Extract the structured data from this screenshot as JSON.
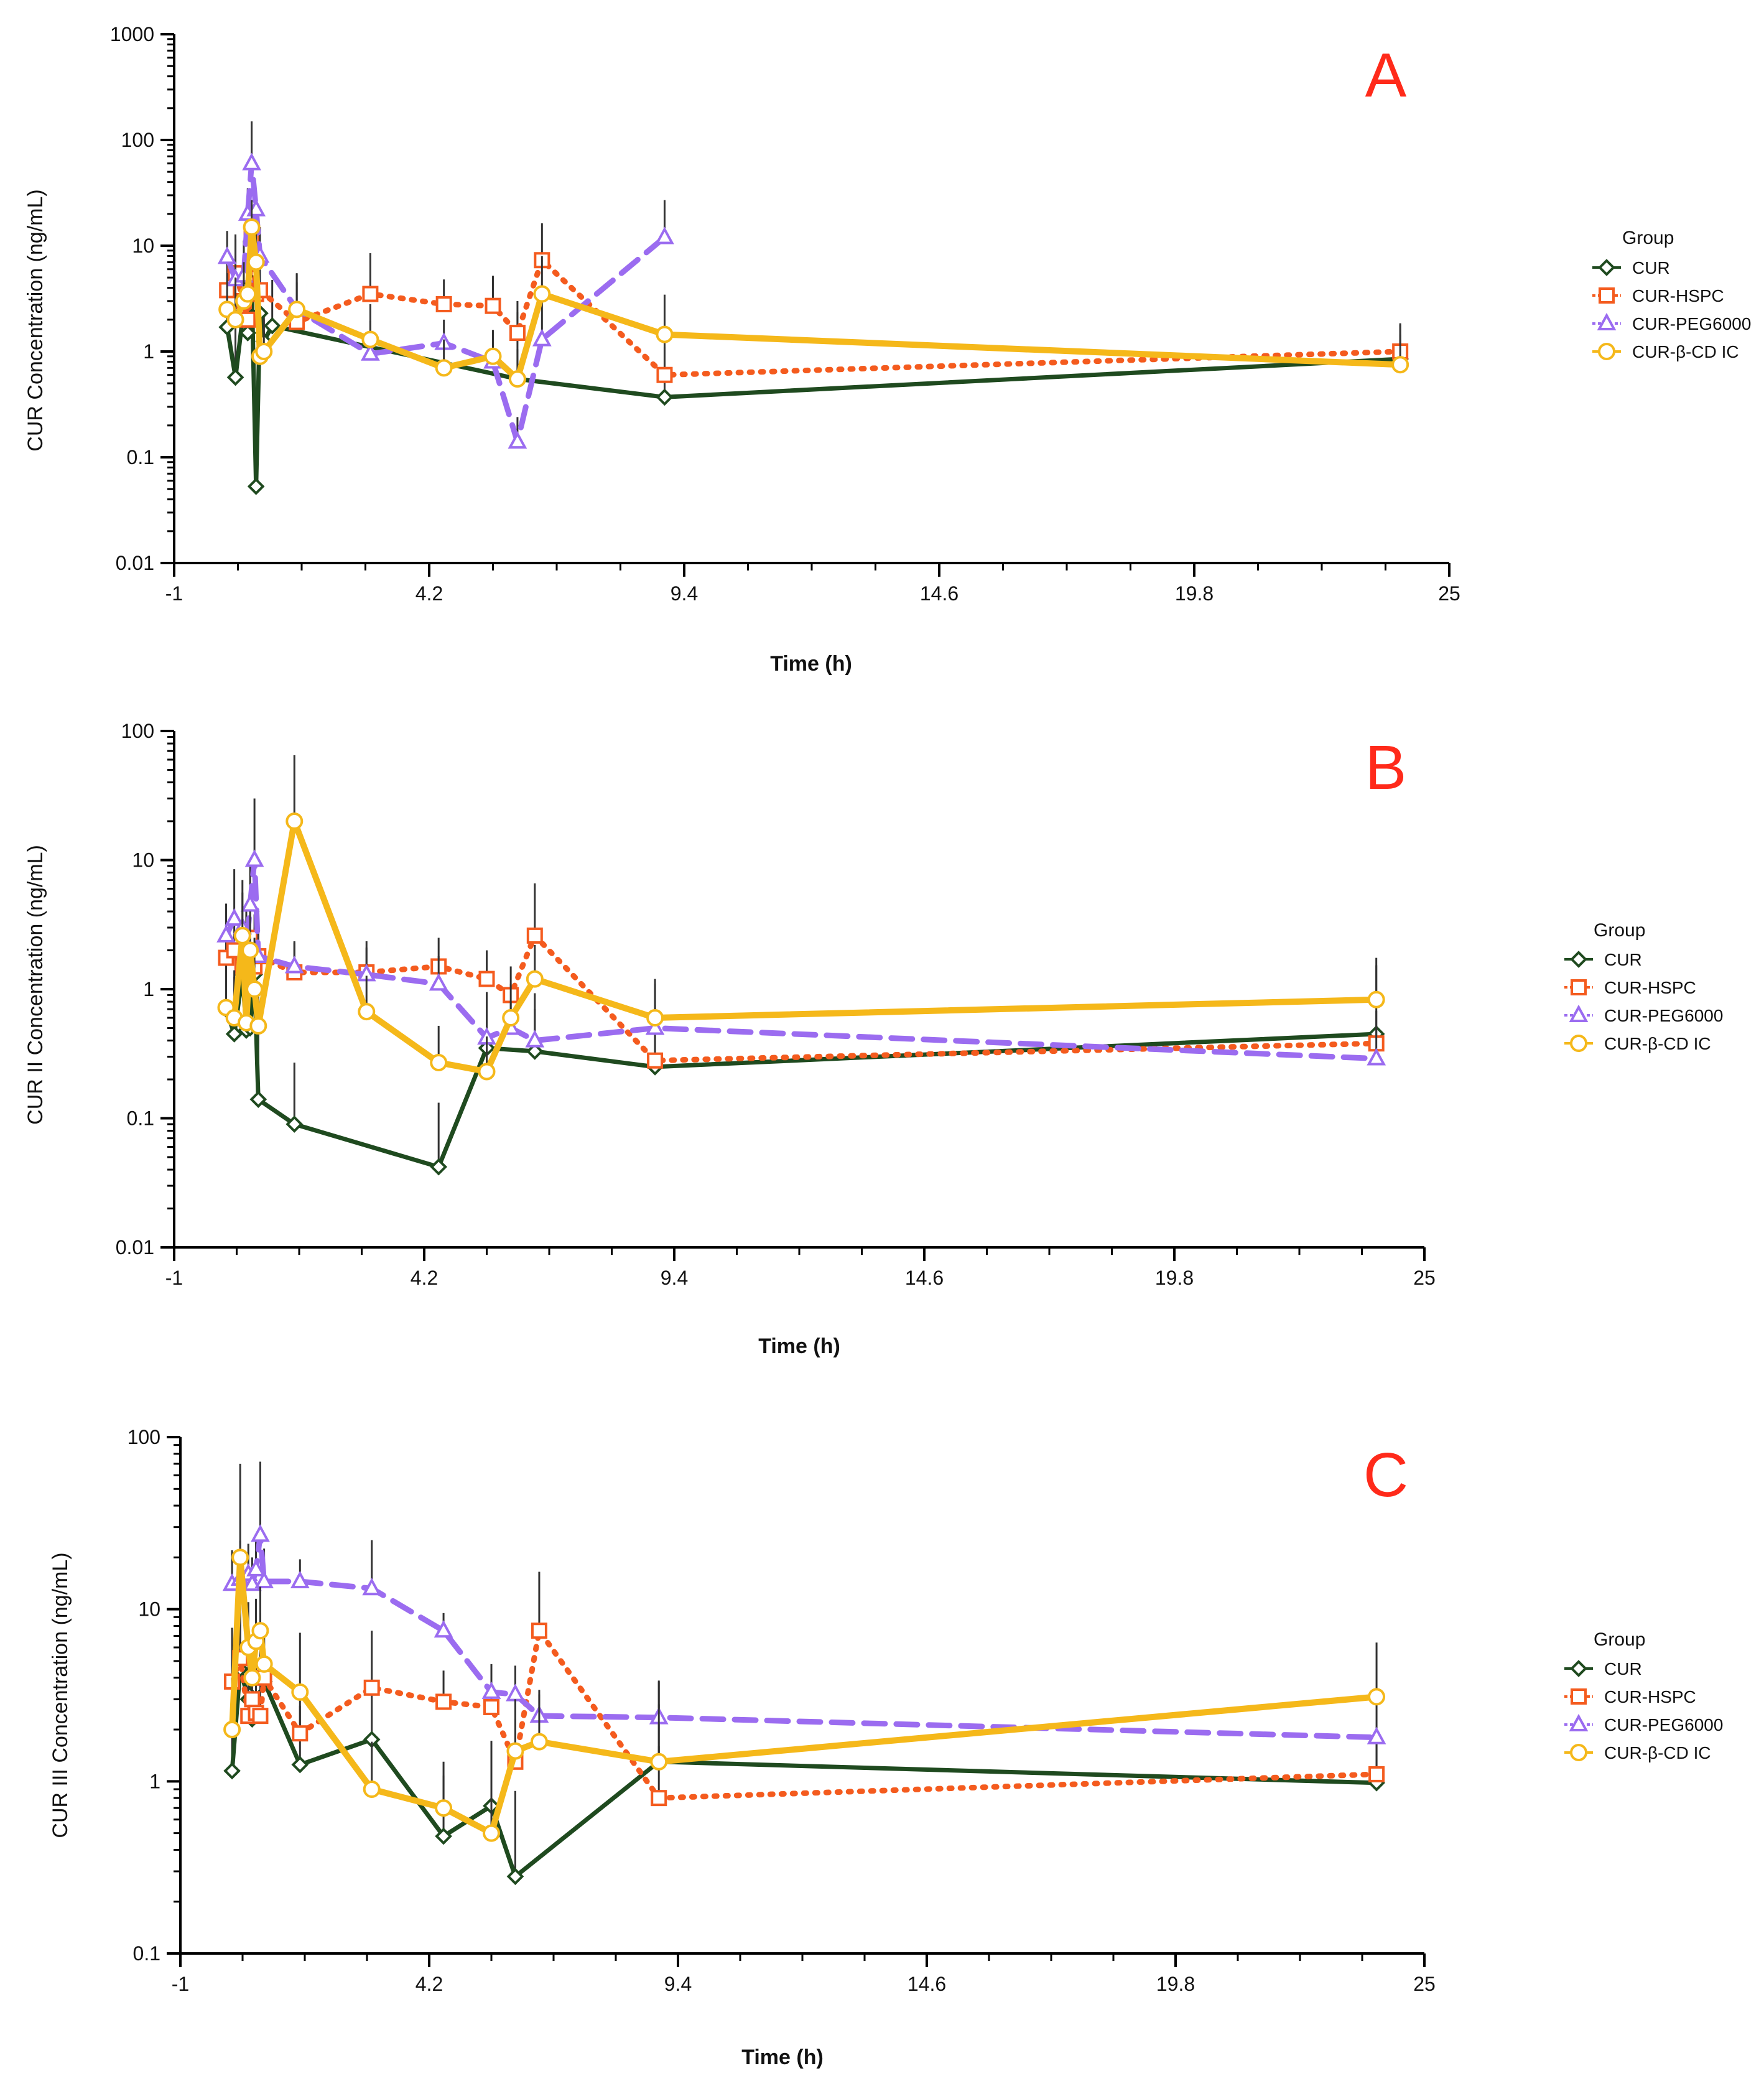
{
  "colors": {
    "cur": "#1f4a1f",
    "hspc": "#f45b1e",
    "peg": "#9b6cf0",
    "bcd": "#f5b81a",
    "panel_letter": "#ff2a1a"
  },
  "series_defs": [
    {
      "key": "CUR",
      "label": "CUR",
      "color": "#1f4a1f",
      "dash": "",
      "marker": "diamond",
      "width": 7
    },
    {
      "key": "HSPC",
      "label": "CUR-HSPC",
      "color": "#f45b1e",
      "dash": "4,14",
      "marker": "square",
      "width": 9
    },
    {
      "key": "PEG",
      "label": "CUR-PEG6000",
      "color": "#9b6cf0",
      "dash": "34,18",
      "marker": "triangle",
      "width": 9
    },
    {
      "key": "BCD",
      "label": "CUR-β-CD IC",
      "color": "#f5b81a",
      "dash": "",
      "marker": "circle",
      "width": 10
    }
  ],
  "chart_data": [
    {
      "type": "line",
      "panel_label": "A",
      "title": "",
      "ylabel": "CUR Concentration (ng/mL)",
      "xlabel": "Time (h)",
      "xlim": [
        -1,
        25
      ],
      "ylim": [
        0.01,
        1000
      ],
      "yscale": "log",
      "x_ticks": [
        "-1",
        "4.2",
        "9.4",
        "14.6",
        "19.8",
        "25"
      ],
      "y_ticks": [
        "1000",
        "100",
        "10",
        "1",
        "0.1",
        "0.01"
      ],
      "legend_title": "Group",
      "legend_position": "right",
      "series": [
        {
          "name": "CUR",
          "x": [
            0.08,
            0.25,
            0.42,
            0.5,
            0.58,
            0.67,
            0.75,
            0.83,
            1.0,
            6.0,
            9.0,
            24.0
          ],
          "y": [
            1.7,
            0.57,
            2.6,
            1.5,
            4.5,
            0.053,
            2.3,
            1.25,
            1.75,
            0.55,
            0.37,
            0.85
          ],
          "err": [
            2.8,
            1.4,
            4.5,
            2.5,
            6.0,
            0.1,
            3.5,
            1.2,
            3.0,
            1.8,
            0.9,
            1.0
          ]
        },
        {
          "name": "CUR-HSPC",
          "x": [
            0.08,
            0.25,
            0.42,
            0.5,
            0.58,
            0.67,
            0.75,
            1.5,
            3.0,
            4.5,
            5.5,
            6.0,
            6.5,
            9.0,
            24.0
          ],
          "y": [
            3.8,
            5.5,
            3.0,
            2.0,
            12.0,
            3.5,
            3.8,
            1.9,
            3.5,
            2.8,
            2.7,
            1.5,
            7.3,
            0.6,
            1.0
          ],
          "err": [
            5.0,
            6.0,
            4.0,
            3.0,
            15.0,
            4.0,
            4.5,
            3.5,
            5.0,
            2.0,
            2.5,
            1.5,
            9.0,
            0.5,
            0.8
          ]
        },
        {
          "name": "CUR-PEG6000",
          "x": [
            0.08,
            0.25,
            0.42,
            0.5,
            0.58,
            0.67,
            0.75,
            1.5,
            3.0,
            4.5,
            5.5,
            6.0,
            6.5,
            9.0
          ],
          "y": [
            7.8,
            4.8,
            5.2,
            20.0,
            60.0,
            22.0,
            8.0,
            2.5,
            0.95,
            1.2,
            0.8,
            0.14,
            1.3,
            12.0
          ],
          "err": [
            6.0,
            8.0,
            6.0,
            15.0,
            90.0,
            10.0,
            7.0,
            2.0,
            1.0,
            0.8,
            0.5,
            0.1,
            2.0,
            15.0
          ]
        },
        {
          "name": "CUR-β-CD IC",
          "x": [
            0.08,
            0.25,
            0.42,
            0.5,
            0.58,
            0.67,
            0.75,
            0.83,
            1.5,
            3.0,
            4.5,
            5.5,
            6.0,
            6.5,
            9.0,
            24.0
          ],
          "y": [
            2.5,
            2.0,
            3.0,
            3.5,
            15.0,
            7.0,
            0.9,
            1.0,
            2.5,
            1.3,
            0.7,
            0.9,
            0.55,
            3.5,
            1.45,
            0.75
          ],
          "err": [
            3.0,
            3.0,
            4.0,
            4.0,
            12.0,
            6.0,
            1.0,
            1.0,
            3.0,
            1.5,
            0.6,
            0.7,
            0.5,
            4.5,
            2.0,
            0.7
          ]
        }
      ]
    },
    {
      "type": "line",
      "panel_label": "B",
      "title": "",
      "ylabel": "CUR II Concentration (ng/mL)",
      "xlabel": "Time (h)",
      "xlim": [
        -1,
        25
      ],
      "ylim": [
        0.01,
        100
      ],
      "yscale": "log",
      "x_ticks": [
        "-1",
        "4.2",
        "9.4",
        "14.6",
        "19.8",
        "25"
      ],
      "y_ticks": [
        "100",
        "10",
        "1",
        "0.1",
        "0.01"
      ],
      "legend_title": "Group",
      "legend_position": "right",
      "series": [
        {
          "name": "CUR",
          "x": [
            0.08,
            0.25,
            0.42,
            0.5,
            0.58,
            0.67,
            0.75,
            1.5,
            4.5,
            5.5,
            6.5,
            9.0,
            24.0
          ],
          "y": [
            0.7,
            0.45,
            1.3,
            0.48,
            0.5,
            1.3,
            0.14,
            0.09,
            0.042,
            0.35,
            0.33,
            0.25,
            0.45
          ],
          "err": [
            1.5,
            0.8,
            2.0,
            1.0,
            0.8,
            2.5,
            0.5,
            0.18,
            0.09,
            0.6,
            0.6,
            0.5,
            1.3
          ]
        },
        {
          "name": "CUR-HSPC",
          "x": [
            0.08,
            0.25,
            0.42,
            0.5,
            0.58,
            0.67,
            0.75,
            1.5,
            3.0,
            4.5,
            5.5,
            6.0,
            6.5,
            9.0,
            24.0
          ],
          "y": [
            1.75,
            2.0,
            1.5,
            1.8,
            2.5,
            1.5,
            1.8,
            1.35,
            1.35,
            1.5,
            1.2,
            0.9,
            2.6,
            0.28,
            0.38
          ],
          "err": [
            2.0,
            2.0,
            1.5,
            2.0,
            2.5,
            1.5,
            1.5,
            1.0,
            1.0,
            1.0,
            0.8,
            0.6,
            4.0,
            0.3,
            0.3
          ]
        },
        {
          "name": "CUR-PEG6000",
          "x": [
            0.08,
            0.25,
            0.42,
            0.5,
            0.58,
            0.67,
            0.75,
            1.5,
            3.0,
            4.5,
            5.5,
            6.0,
            6.5,
            9.0,
            24.0
          ],
          "y": [
            2.6,
            3.5,
            3.0,
            2.0,
            4.5,
            10.0,
            1.8,
            1.5,
            1.3,
            1.1,
            0.42,
            0.5,
            0.4,
            0.5,
            0.29
          ],
          "err": [
            2.0,
            5.0,
            4.0,
            2.0,
            5.0,
            20.0,
            1.5,
            0.8,
            0.8,
            0.7,
            0.3,
            0.3,
            0.3,
            0.6,
            0.2
          ]
        },
        {
          "name": "CUR-β-CD IC",
          "x": [
            0.08,
            0.25,
            0.42,
            0.5,
            0.58,
            0.67,
            0.75,
            1.5,
            3.0,
            4.5,
            5.5,
            6.0,
            6.5,
            9.0,
            24.0
          ],
          "y": [
            0.72,
            0.6,
            2.6,
            0.55,
            2.0,
            1.0,
            0.52,
            20.0,
            0.67,
            0.27,
            0.23,
            0.6,
            1.2,
            0.6,
            0.83
          ],
          "err": [
            0.8,
            0.8,
            3.0,
            0.8,
            2.0,
            1.5,
            0.5,
            45.0,
            0.6,
            0.25,
            0.2,
            0.5,
            1.0,
            0.6,
            0.7
          ]
        }
      ]
    },
    {
      "type": "line",
      "panel_label": "C",
      "title": "",
      "ylabel": "CUR III Concentration (ng/mL)",
      "xlabel": "Time (h)",
      "xlim": [
        -1,
        25
      ],
      "ylim": [
        0.1,
        100
      ],
      "yscale": "log",
      "x_ticks": [
        "-1",
        "4.2",
        "9.4",
        "14.6",
        "19.8",
        "25"
      ],
      "y_ticks": [
        "100",
        "10",
        "1",
        "0.1"
      ],
      "legend_title": "Group",
      "legend_position": "right",
      "series": [
        {
          "name": "CUR",
          "x": [
            0.08,
            0.25,
            0.42,
            0.5,
            0.58,
            0.67,
            0.75,
            1.5,
            3.0,
            4.5,
            5.5,
            6.0,
            9.0,
            24.0
          ],
          "y": [
            1.15,
            4.5,
            3.0,
            2.3,
            3.5,
            4.5,
            3.8,
            1.25,
            1.75,
            0.48,
            0.72,
            0.28,
            1.3,
            0.98
          ],
          "err": [
            1.5,
            6.0,
            3.0,
            2.0,
            3.0,
            5.0,
            3.0,
            1.5,
            2.0,
            0.6,
            1.0,
            0.6,
            2.5,
            1.0
          ]
        },
        {
          "name": "CUR-HSPC",
          "x": [
            0.08,
            0.25,
            0.42,
            0.5,
            0.58,
            0.67,
            0.75,
            1.5,
            3.0,
            4.5,
            5.5,
            6.0,
            6.5,
            9.0,
            24.0
          ],
          "y": [
            3.8,
            5.2,
            2.4,
            3.0,
            2.5,
            2.4,
            4.0,
            1.9,
            3.5,
            2.9,
            2.7,
            1.3,
            7.5,
            0.8,
            1.1
          ],
          "err": [
            4.0,
            5.0,
            3.0,
            3.0,
            2.5,
            2.0,
            3.0,
            1.5,
            4.0,
            1.5,
            2.0,
            1.0,
            9.0,
            0.8,
            0.9
          ]
        },
        {
          "name": "CUR-PEG6000",
          "x": [
            0.08,
            0.25,
            0.42,
            0.5,
            0.58,
            0.67,
            0.75,
            1.5,
            3.0,
            4.5,
            5.5,
            6.0,
            6.5,
            9.0,
            24.0
          ],
          "y": [
            14.0,
            15.0,
            16.0,
            14.0,
            17.0,
            27.0,
            14.5,
            14.5,
            13.2,
            7.5,
            3.3,
            3.2,
            2.4,
            2.35,
            1.8
          ],
          "err": [
            8.0,
            10.0,
            8.0,
            6.0,
            10.0,
            45.0,
            8.0,
            5.0,
            12.0,
            2.0,
            1.5,
            1.5,
            1.0,
            1.5,
            1.2
          ]
        },
        {
          "name": "CUR-β-CD IC",
          "x": [
            0.08,
            0.25,
            0.42,
            0.5,
            0.58,
            0.67,
            0.75,
            1.5,
            3.0,
            4.5,
            5.5,
            6.0,
            6.5,
            9.0,
            24.0
          ],
          "y": [
            2.0,
            20.0,
            6.0,
            4.0,
            6.5,
            7.5,
            4.8,
            3.3,
            0.9,
            0.7,
            0.5,
            1.5,
            1.7,
            1.3,
            3.1
          ],
          "err": [
            2.0,
            50.0,
            5.0,
            3.0,
            5.0,
            6.0,
            3.0,
            4.0,
            0.8,
            0.6,
            0.4,
            1.5,
            1.5,
            1.5,
            3.3
          ]
        }
      ]
    }
  ]
}
